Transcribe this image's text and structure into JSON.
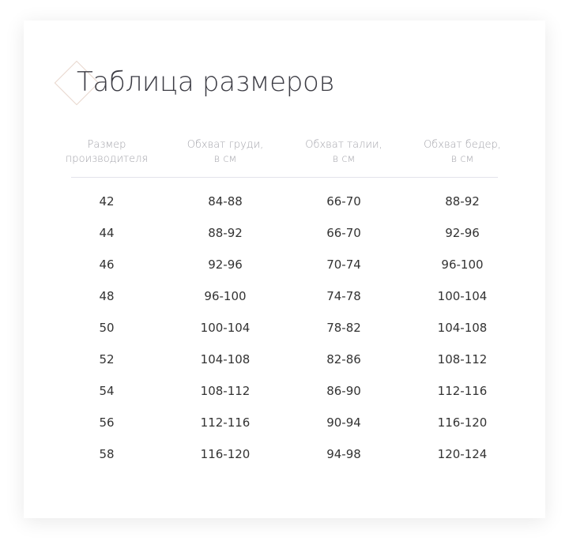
{
  "title": "Таблица размеров",
  "accent_color": "#e8d6cc",
  "table": {
    "headers": [
      {
        "line1": "Размер",
        "line2": "производителя"
      },
      {
        "line1": "Обхват груди,",
        "line2": "в см"
      },
      {
        "line1": "Обхват талии,",
        "line2": "в см"
      },
      {
        "line1": "Обхват бедер,",
        "line2": "в см"
      }
    ],
    "rows": [
      [
        "42",
        "84-88",
        "66-70",
        "88-92"
      ],
      [
        "44",
        "88-92",
        "66-70",
        "92-96"
      ],
      [
        "46",
        "92-96",
        "70-74",
        "96-100"
      ],
      [
        "48",
        "96-100",
        "74-78",
        "100-104"
      ],
      [
        "50",
        "100-104",
        "78-82",
        "104-108"
      ],
      [
        "52",
        "104-108",
        "82-86",
        "108-112"
      ],
      [
        "54",
        "108-112",
        "86-90",
        "112-116"
      ],
      [
        "56",
        "112-116",
        "90-94",
        "116-120"
      ],
      [
        "58",
        "116-120",
        "94-98",
        "120-124"
      ]
    ]
  }
}
